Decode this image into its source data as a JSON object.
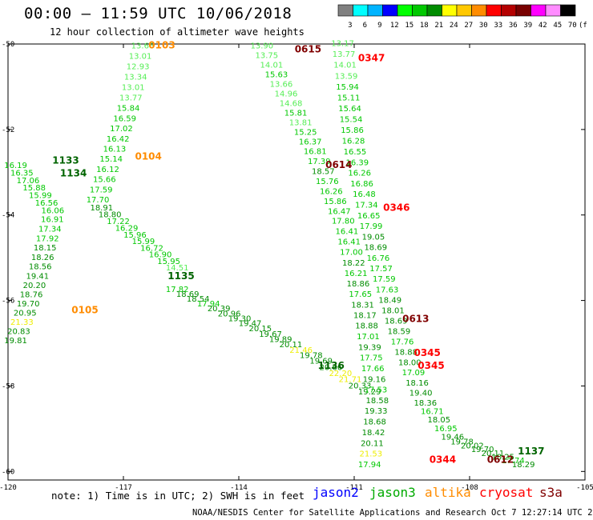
{
  "header": {
    "title": "00:00 – 11:59 UTC 10/06/2018",
    "subtitle": "12 hour collection of altimeter wave heights"
  },
  "colorbar": {
    "labels": [
      "3",
      "6",
      "9",
      "12",
      "15",
      "18",
      "21",
      "24",
      "27",
      "30",
      "33",
      "36",
      "39",
      "42",
      "45",
      "70",
      "(ft)"
    ],
    "colors": [
      "#808080",
      "#00ffff",
      "#00b4ff",
      "#0000ff",
      "#00ff00",
      "#00c800",
      "#008c00",
      "#ffff00",
      "#ffc800",
      "#ff8c00",
      "#ff0000",
      "#b40000",
      "#780000",
      "#ff00ff",
      "#ff8cff",
      "#000000"
    ]
  },
  "axes": {
    "lon_ticks": [
      -120,
      -117,
      -114,
      -111,
      -108,
      -105
    ],
    "lat_ticks": [
      -50,
      -52,
      -54,
      -56,
      -58,
      -60
    ],
    "lon_labels": [
      "-120",
      "-117",
      "-114",
      "-111",
      "-108",
      "-105"
    ],
    "lat_labels": [
      "-50",
      "-52",
      "-54",
      "-56",
      "-58",
      "-60"
    ],
    "lon_range": [
      -120,
      -105
    ],
    "lat_range": [
      -60.2,
      -50
    ]
  },
  "map_data": {
    "color_scale": [
      {
        "max": 15,
        "color": "#55ee55"
      },
      {
        "max": 18,
        "color": "#00c800"
      },
      {
        "max": 21,
        "color": "#008c00"
      },
      {
        "max": 99,
        "color": "#eeee00"
      }
    ],
    "tracks": [
      {
        "label_color": "#ff8c00",
        "values": [
          "13.66",
          "13.01",
          "12.93",
          "13.34",
          "13.01",
          "13.77",
          "15.84",
          "16.59",
          "17.02",
          "16.42",
          "16.13",
          "15.14",
          "16.12",
          "15.66",
          "17.59",
          "17.70",
          "18.91",
          "18.80",
          "17.22",
          "16.29",
          "15.96",
          "15.99",
          "16.72",
          "16.90",
          "15.95",
          "14.51"
        ]
      },
      {
        "label_color": "#006400",
        "values": [
          "16.19",
          "16.35",
          "17.06",
          "15.88",
          "15.99",
          "16.56",
          "16.06",
          "16.91",
          "17.34",
          "17.92",
          "18.15",
          "18.26",
          "18.56",
          "19.41",
          "20.20",
          "18.76",
          "19.70",
          "20.95",
          "21.33",
          "20.83",
          "19.81"
        ]
      },
      {
        "label_color": "#006400",
        "values": [
          "17.82",
          "18.69",
          "18.54",
          "17.94",
          "20.39",
          "20.96",
          "19.30",
          "19.47",
          "20.15",
          "19.67",
          "19.89",
          "20.11",
          "21.46",
          "19.78",
          "19.69",
          "20.66",
          "22.20",
          "21.71",
          "20.33",
          "19.29"
        ]
      },
      {
        "label_color": "#800000",
        "values": [
          "13.90",
          "13.75",
          "14.01",
          "15.63",
          "13.66",
          "14.96",
          "14.68",
          "15.81",
          "13.81",
          "15.25",
          "16.37",
          "16.81",
          "17.39",
          "18.57",
          "15.76",
          "16.26",
          "15.86",
          "16.47",
          "17.80",
          "16.41",
          "16.41",
          "17.00",
          "18.22",
          "16.21",
          "18.86",
          "17.65",
          "18.31",
          "18.17",
          "18.88",
          "17.01",
          "19.39",
          "17.75",
          "17.66",
          "19.16",
          "17.53",
          "18.58",
          "19.33",
          "18.68",
          "18.42",
          "20.11",
          "21.53",
          "17.94"
        ]
      },
      {
        "label_color": "#ff0000",
        "values": [
          "13.17",
          "13.77",
          "14.01",
          "13.59",
          "15.94",
          "15.11",
          "15.64",
          "15.54",
          "15.86",
          "16.28",
          "16.55",
          "16.39",
          "16.26",
          "16.86",
          "16.48",
          "17.34",
          "16.65",
          "17.99",
          "19.05",
          "18.69",
          "16.76",
          "17.57",
          "17.59",
          "17.63",
          "18.49",
          "18.01",
          "18.69",
          "18.59",
          "17.76",
          "18.88",
          "18.00",
          "17.09",
          "18.16",
          "19.40",
          "18.36",
          "16.71",
          "18.05",
          "16.95",
          "19.46",
          "19.78",
          "20.02",
          "19.70",
          "20.11",
          "18.25",
          "17.74",
          "18.29"
        ]
      }
    ],
    "labels": [
      {
        "text": "0103",
        "color": "#ff8c00",
        "lon": -116.0,
        "lat": -50.1
      },
      {
        "text": "0104",
        "color": "#ff8c00",
        "lon": -116.35,
        "lat": -52.7
      },
      {
        "text": "0105",
        "color": "#ff8c00",
        "lon": -118.0,
        "lat": -56.3
      },
      {
        "text": "1133",
        "color": "#006400",
        "lon": -118.5,
        "lat": -52.8
      },
      {
        "text": "1134",
        "color": "#006400",
        "lon": -118.3,
        "lat": -53.1
      },
      {
        "text": "1135",
        "color": "#006400",
        "lon": -115.5,
        "lat": -55.5
      },
      {
        "text": "1136",
        "color": "#006400",
        "lon": -111.6,
        "lat": -57.6
      },
      {
        "text": "1137",
        "color": "#006400",
        "lon": -106.4,
        "lat": -59.6
      },
      {
        "text": "0615",
        "color": "#800000",
        "lon": -112.2,
        "lat": -50.2
      },
      {
        "text": "0614",
        "color": "#800000",
        "lon": -111.4,
        "lat": -52.9
      },
      {
        "text": "0613",
        "color": "#800000",
        "lon": -109.4,
        "lat": -56.5
      },
      {
        "text": "0612",
        "color": "#800000",
        "lon": -107.2,
        "lat": -59.8
      },
      {
        "text": "0347",
        "color": "#ff0000",
        "lon": -110.55,
        "lat": -50.4
      },
      {
        "text": "0346",
        "color": "#ff0000",
        "lon": -109.9,
        "lat": -53.9
      },
      {
        "text": "0345",
        "color": "#ff0000",
        "lon": -109.1,
        "lat": -57.3
      },
      {
        "text": "0345",
        "color": "#ff0000",
        "lon": -109.0,
        "lat": -57.6
      },
      {
        "text": "0344",
        "color": "#ff0000",
        "lon": -108.7,
        "lat": -59.8
      }
    ]
  },
  "footer": {
    "note": "note: 1) Time is in UTC; 2) SWH is in feet",
    "legend": [
      {
        "name": "jason2",
        "color": "#0000ff"
      },
      {
        "name": "jason3",
        "color": "#00aa00"
      },
      {
        "name": "altika",
        "color": "#ff8c00"
      },
      {
        "name": "cryosat",
        "color": "#ff0000"
      },
      {
        "name": "s3a",
        "color": "#800000"
      }
    ],
    "credit": "NOAA/NESDIS Center for Satellite Applications and Research   Oct  7 12:27:14 UTC 2018"
  }
}
